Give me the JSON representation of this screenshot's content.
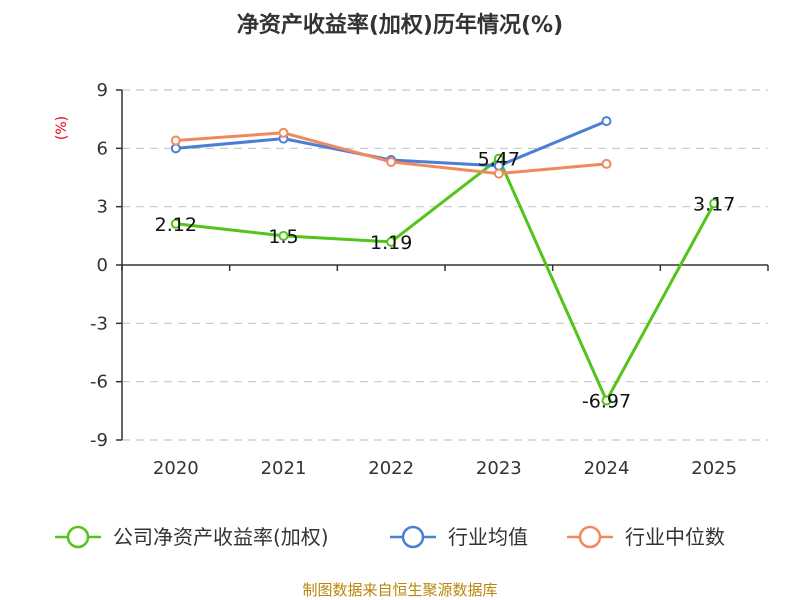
{
  "chart_data": {
    "type": "line",
    "title": "净资产收益率(加权)历年情况(%)",
    "ylabel": "(%)",
    "xlabel": "",
    "categories": [
      "2020",
      "2021",
      "2022",
      "2023",
      "2024",
      "2025"
    ],
    "ylim": [
      -9,
      9
    ],
    "yticks": [
      9,
      6,
      3,
      0,
      -3,
      -6,
      -9
    ],
    "grid": true,
    "legend_position": "bottom",
    "series": [
      {
        "name": "公司净资产收益率(加权)",
        "color": "#52c41a",
        "values": [
          2.12,
          1.5,
          1.19,
          5.47,
          -6.97,
          3.17
        ],
        "labels": [
          "2.12",
          "1.5",
          "1.19",
          "5.47",
          "-6.97",
          "3.17"
        ]
      },
      {
        "name": "行业均值",
        "color": "#4a7fd4",
        "values": [
          6.0,
          6.5,
          5.4,
          5.1,
          7.4,
          null
        ]
      },
      {
        "name": "行业中位数",
        "color": "#f08a5d",
        "values": [
          6.4,
          6.8,
          5.3,
          4.7,
          5.2,
          null
        ]
      }
    ]
  },
  "source": "制图数据来自恒生聚源数据库"
}
